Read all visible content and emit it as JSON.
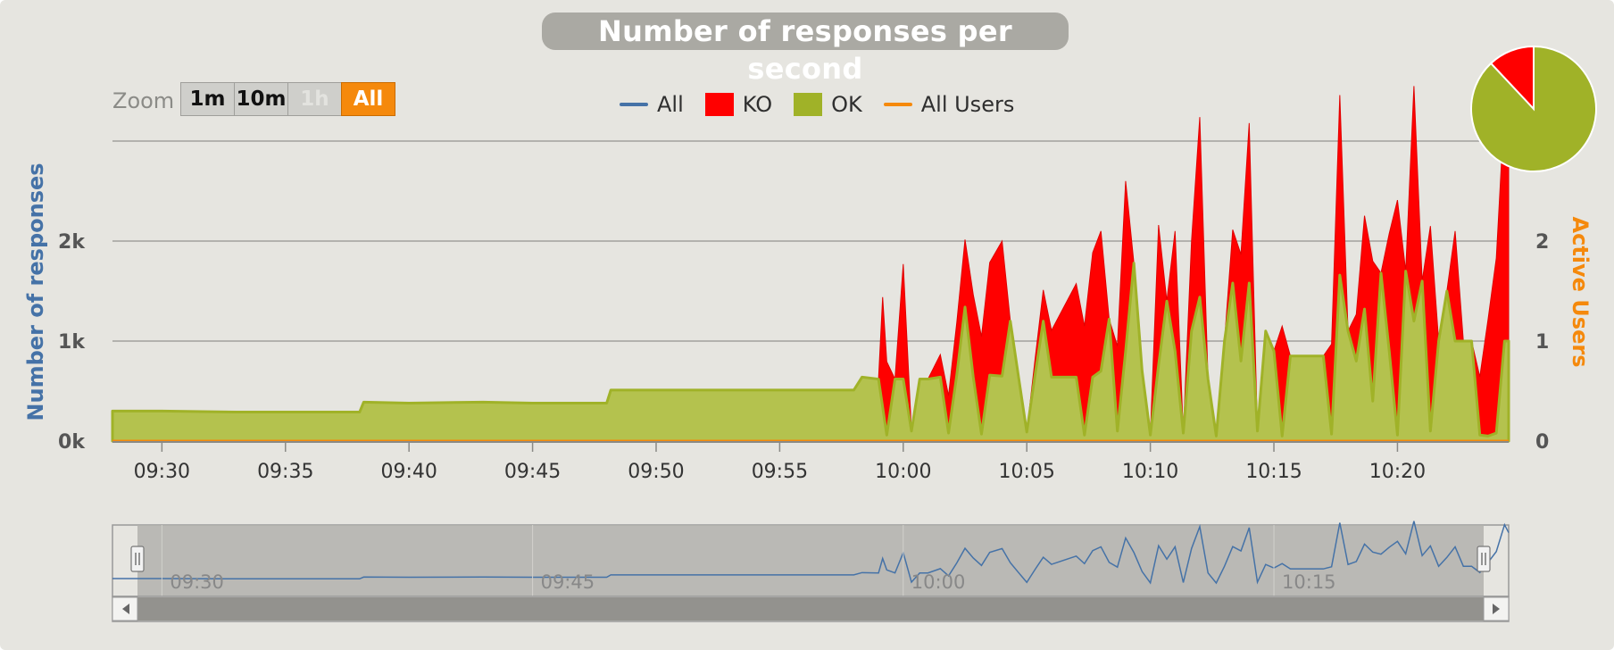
{
  "title": "Number of responses per second",
  "zoom": {
    "label": "Zoom",
    "buttons": [
      {
        "id": "1m",
        "label": "1m",
        "state": "enabled"
      },
      {
        "id": "10m",
        "label": "10m",
        "state": "enabled"
      },
      {
        "id": "1h",
        "label": "1h",
        "state": "disabled"
      },
      {
        "id": "all",
        "label": "All",
        "state": "selected"
      }
    ]
  },
  "legend": [
    {
      "name": "All",
      "color": "#4572a7",
      "symbol": "line"
    },
    {
      "name": "KO",
      "color": "#ff0000",
      "symbol": "box"
    },
    {
      "name": "OK",
      "color": "#a0b228",
      "symbol": "box"
    },
    {
      "name": "All Users",
      "color": "#f5890c",
      "symbol": "line"
    }
  ],
  "chart_data": {
    "type": "area",
    "stacked": true,
    "x_unit": "time (HH:MM)",
    "xlim": [
      "09:28",
      "10:24:30"
    ],
    "x_ticks": [
      "09:30",
      "09:35",
      "09:40",
      "09:45",
      "09:50",
      "09:55",
      "10:00",
      "10:05",
      "10:10",
      "10:15",
      "10:20"
    ],
    "ylabel": "Number of responses",
    "ylim": [
      0,
      3000
    ],
    "y_ticks": [
      0,
      1000,
      2000
    ],
    "y_tick_labels": [
      "0k",
      "1k",
      "2k"
    ],
    "y2label": "Active Users",
    "y2lim": [
      0,
      3
    ],
    "y2_ticks": [
      0,
      1,
      2
    ],
    "grid": true,
    "legend_position": "top-center",
    "series": [
      {
        "name": "OK",
        "color": "#a0b228",
        "points": [
          [
            "09:28",
            300
          ],
          [
            "09:30",
            300
          ],
          [
            "09:33",
            290
          ],
          [
            "09:35",
            290
          ],
          [
            "09:38",
            290
          ],
          [
            "09:38:10",
            390
          ],
          [
            "09:40",
            380
          ],
          [
            "09:43",
            390
          ],
          [
            "09:45",
            380
          ],
          [
            "09:48",
            380
          ],
          [
            "09:48:10",
            510
          ],
          [
            "09:50",
            510
          ],
          [
            "09:53",
            510
          ],
          [
            "09:55",
            510
          ],
          [
            "09:58",
            510
          ],
          [
            "09:58:20",
            640
          ],
          [
            "09:59",
            620
          ],
          [
            "09:59:20",
            60
          ],
          [
            "09:59:40",
            620
          ],
          [
            "10:00",
            620
          ],
          [
            "10:00:20",
            100
          ],
          [
            "10:00:40",
            620
          ],
          [
            "10:01",
            620
          ],
          [
            "10:01:30",
            640
          ],
          [
            "10:01:50",
            80
          ],
          [
            "10:02:10",
            660
          ],
          [
            "10:02:30",
            1340
          ],
          [
            "10:02:50",
            640
          ],
          [
            "10:03:10",
            70
          ],
          [
            "10:03:30",
            660
          ],
          [
            "10:04",
            650
          ],
          [
            "10:04:20",
            1200
          ],
          [
            "10:04:40",
            640
          ],
          [
            "10:05",
            90
          ],
          [
            "10:05:20",
            660
          ],
          [
            "10:05:40",
            1200
          ],
          [
            "10:06",
            640
          ],
          [
            "10:06:30",
            640
          ],
          [
            "10:07",
            640
          ],
          [
            "10:07:20",
            60
          ],
          [
            "10:07:40",
            640
          ],
          [
            "10:08",
            700
          ],
          [
            "10:08:20",
            1220
          ],
          [
            "10:08:40",
            100
          ],
          [
            "10:09",
            900
          ],
          [
            "10:09:20",
            1780
          ],
          [
            "10:09:40",
            700
          ],
          [
            "10:10",
            60
          ],
          [
            "10:10:20",
            760
          ],
          [
            "10:10:40",
            1400
          ],
          [
            "10:11",
            900
          ],
          [
            "10:11:20",
            80
          ],
          [
            "10:11:40",
            1100
          ],
          [
            "10:12",
            1440
          ],
          [
            "10:12:20",
            620
          ],
          [
            "10:12:40",
            50
          ],
          [
            "10:13",
            1000
          ],
          [
            "10:13:20",
            1580
          ],
          [
            "10:13:40",
            800
          ],
          [
            "10:14",
            1580
          ],
          [
            "10:14:20",
            100
          ],
          [
            "10:14:40",
            1100
          ],
          [
            "10:15",
            900
          ],
          [
            "10:15:20",
            50
          ],
          [
            "10:15:40",
            850
          ],
          [
            "10:16",
            850
          ],
          [
            "10:16:30",
            850
          ],
          [
            "10:17",
            850
          ],
          [
            "10:17:20",
            70
          ],
          [
            "10:17:40",
            1660
          ],
          [
            "10:18",
            1100
          ],
          [
            "10:18:20",
            800
          ],
          [
            "10:18:40",
            1320
          ],
          [
            "10:19",
            400
          ],
          [
            "10:19:20",
            1680
          ],
          [
            "10:19:40",
            900
          ],
          [
            "10:20",
            60
          ],
          [
            "10:20:20",
            1700
          ],
          [
            "10:20:40",
            1200
          ],
          [
            "10:21",
            1600
          ],
          [
            "10:21:20",
            100
          ],
          [
            "10:21:40",
            1000
          ],
          [
            "10:22",
            1500
          ],
          [
            "10:22:20",
            1000
          ],
          [
            "10:22:40",
            1000
          ],
          [
            "10:23",
            1000
          ],
          [
            "10:23:20",
            60
          ],
          [
            "10:23:40",
            50
          ],
          [
            "10:24",
            80
          ],
          [
            "10:24:20",
            1000
          ],
          [
            "10:24:30",
            1000
          ]
        ]
      },
      {
        "name": "KO",
        "color": "#ff0000",
        "points": [
          [
            "09:28",
            0
          ],
          [
            "09:58",
            0
          ],
          [
            "09:59",
            0
          ],
          [
            "09:59:10",
            1100
          ],
          [
            "09:59:40",
            0
          ],
          [
            "10:00",
            1150
          ],
          [
            "10:00:20",
            0
          ],
          [
            "10:01",
            0
          ],
          [
            "10:04",
            1350
          ],
          [
            "10:04:20",
            0
          ],
          [
            "10:05",
            0
          ],
          [
            "10:08",
            1400
          ],
          [
            "10:08:20",
            0
          ],
          [
            "10:09",
            1700
          ],
          [
            "10:09:20",
            0
          ],
          [
            "10:10",
            0
          ],
          [
            "10:10:20",
            1400
          ],
          [
            "10:10:40",
            0
          ],
          [
            "10:11",
            1200
          ],
          [
            "10:11:20",
            0
          ],
          [
            "10:12",
            1800
          ],
          [
            "10:12:20",
            0
          ],
          [
            "10:13",
            0
          ],
          [
            "10:14",
            1600
          ],
          [
            "10:14:20",
            0
          ],
          [
            "10:15",
            0
          ],
          [
            "10:15:20",
            1100
          ],
          [
            "10:15:40",
            0
          ],
          [
            "10:16",
            0
          ],
          [
            "10:17",
            0
          ],
          [
            "10:17:40",
            1800
          ],
          [
            "10:18",
            0
          ],
          [
            "10:19",
            1400
          ],
          [
            "10:19:20",
            0
          ],
          [
            "10:20",
            2350
          ],
          [
            "10:20:20",
            0
          ],
          [
            "10:20:40",
            2350
          ],
          [
            "10:21",
            0
          ],
          [
            "10:21:20",
            2050
          ],
          [
            "10:21:40",
            0
          ],
          [
            "10:22",
            0
          ],
          [
            "10:22:20",
            1100
          ],
          [
            "10:22:40",
            0
          ],
          [
            "10:23",
            0
          ],
          [
            "10:24",
            1750
          ],
          [
            "10:24:20",
            2350
          ],
          [
            "10:24:30",
            1900
          ]
        ]
      },
      {
        "name": "All Users",
        "axis": "right",
        "color": "#f5890c",
        "points": [
          [
            "09:28",
            0
          ],
          [
            "10:24:30",
            0
          ]
        ]
      }
    ],
    "pie": [
      {
        "name": "KO",
        "value": 12,
        "color": "#ff0000"
      },
      {
        "name": "OK",
        "value": 88,
        "color": "#a0b228"
      }
    ],
    "navigator": {
      "series": "All",
      "color": "#4572a7",
      "x_ticks": [
        "09:30",
        "09:45",
        "10:00",
        "10:15"
      ],
      "range": [
        "09:28",
        "10:24:30"
      ]
    }
  }
}
